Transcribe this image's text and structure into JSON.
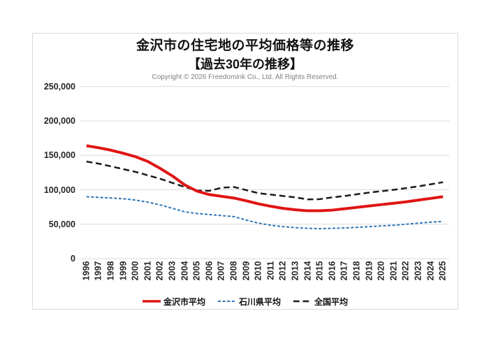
{
  "header": {
    "title": "金沢市の住宅地の平均価格等の推移",
    "subtitle": "【過去30年の推移】",
    "copyright": "Copyright © 2026 Freedomink Co., Ltd. All Rights Reserved."
  },
  "chart_data": {
    "type": "line",
    "title": "金沢市の住宅地の平均価格等の推移",
    "subtitle": "【過去30年の推移】",
    "x": [
      "1996",
      "1997",
      "1998",
      "1999",
      "2000",
      "2001",
      "2002",
      "2003",
      "2004",
      "2005",
      "2006",
      "2007",
      "2008",
      "2009",
      "2010",
      "2011",
      "2012",
      "2013",
      "2014",
      "2015",
      "2016",
      "2017",
      "2018",
      "2019",
      "2020",
      "2021",
      "2022",
      "2023",
      "2024",
      "2025"
    ],
    "series": [
      {
        "id": "zenkoku",
        "name": "全国平均",
        "color": "#1a1a1a",
        "style": "dashed-long",
        "width": 2.5,
        "values": [
          141000,
          138000,
          134000,
          130000,
          126000,
          121000,
          116000,
          110000,
          104000,
          99000,
          98500,
          103000,
          104000,
          99500,
          95000,
          93000,
          91000,
          89000,
          86000,
          86500,
          89000,
          91000,
          93500,
          96000,
          98000,
          100000,
          102500,
          105000,
          108000,
          111000
        ]
      },
      {
        "id": "ishikawa",
        "name": "石川県平均",
        "color": "#2e75b6",
        "style": "dashed-short",
        "width": 2,
        "values": [
          90000,
          89000,
          88000,
          87000,
          85000,
          82000,
          78000,
          73000,
          68000,
          65500,
          64000,
          62500,
          61000,
          56000,
          51500,
          48500,
          46500,
          45000,
          44000,
          43500,
          44000,
          44500,
          45500,
          46500,
          47500,
          48500,
          50000,
          51500,
          53000,
          54000
        ]
      },
      {
        "id": "kanazawa",
        "name": "金沢市平均",
        "color": "#e01414",
        "style": "solid",
        "width": 4,
        "values": [
          164000,
          161000,
          157500,
          153000,
          148000,
          141000,
          131000,
          120000,
          107000,
          98000,
          93000,
          90500,
          88000,
          84000,
          79500,
          76000,
          73000,
          71000,
          69500,
          69500,
          70500,
          72500,
          74500,
          76500,
          78500,
          80500,
          82500,
          85000,
          87500,
          90000
        ]
      }
    ],
    "legend_order": [
      "kanazawa",
      "ishikawa",
      "zenkoku"
    ],
    "y_ticks": [
      0,
      50000,
      100000,
      150000,
      200000,
      250000
    ],
    "y_tick_labels": [
      "0",
      "50,000",
      "100,000",
      "150,000",
      "200,000",
      "250,000"
    ],
    "ylim": [
      0,
      250000
    ],
    "grid": "horizontal",
    "grid_color": "#d9d9d9",
    "legend_position": "bottom"
  }
}
